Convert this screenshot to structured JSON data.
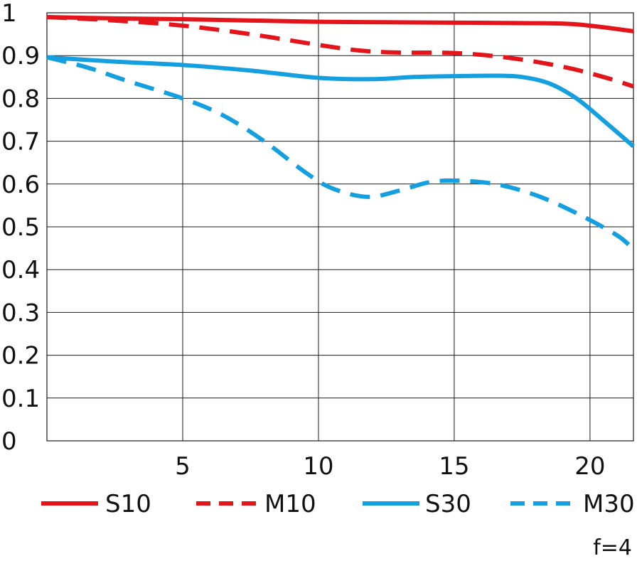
{
  "chart_data": {
    "type": "line",
    "title": "",
    "xlabel": "",
    "ylabel": "",
    "xlim": [
      0,
      21.6
    ],
    "ylim": [
      0,
      1
    ],
    "x_ticks": [
      5,
      10,
      15,
      20
    ],
    "y_ticks": [
      0,
      0.1,
      0.2,
      0.3,
      0.4,
      0.5,
      0.6,
      0.7,
      0.8,
      0.9,
      1
    ],
    "x_tick_labels": [
      "5",
      "10",
      "15",
      "20"
    ],
    "y_tick_labels": [
      "0",
      "0.1",
      "0.2",
      "0.3",
      "0.4",
      "0.5",
      "0.6",
      "0.7",
      "0.8",
      "0.9",
      "1"
    ],
    "grid": true,
    "legend_position": "bottom",
    "annotation": "f=4",
    "series": [
      {
        "name": "S10",
        "color": "#e3151a",
        "style": "solid",
        "points": [
          [
            0,
            0.99
          ],
          [
            2.5,
            0.987
          ],
          [
            5,
            0.985
          ],
          [
            7.5,
            0.982
          ],
          [
            10,
            0.979
          ],
          [
            12.5,
            0.978
          ],
          [
            15,
            0.977
          ],
          [
            17.5,
            0.976
          ],
          [
            19.5,
            0.973
          ],
          [
            21.6,
            0.957
          ]
        ]
      },
      {
        "name": "M10",
        "color": "#e3151a",
        "style": "dashed",
        "points": [
          [
            0,
            0.99
          ],
          [
            2.5,
            0.982
          ],
          [
            5,
            0.97
          ],
          [
            7.5,
            0.95
          ],
          [
            10,
            0.925
          ],
          [
            11.5,
            0.912
          ],
          [
            13,
            0.907
          ],
          [
            15,
            0.906
          ],
          [
            17,
            0.895
          ],
          [
            19,
            0.874
          ],
          [
            20.5,
            0.85
          ],
          [
            21.6,
            0.828
          ]
        ]
      },
      {
        "name": "S30",
        "color": "#14a0e0",
        "style": "solid",
        "points": [
          [
            0,
            0.896
          ],
          [
            2.5,
            0.886
          ],
          [
            5,
            0.878
          ],
          [
            7.5,
            0.865
          ],
          [
            10,
            0.848
          ],
          [
            12,
            0.845
          ],
          [
            13.5,
            0.85
          ],
          [
            15,
            0.852
          ],
          [
            16.5,
            0.853
          ],
          [
            17.5,
            0.85
          ],
          [
            18.5,
            0.835
          ],
          [
            19.5,
            0.8
          ],
          [
            20.5,
            0.748
          ],
          [
            21.6,
            0.688
          ]
        ]
      },
      {
        "name": "M30",
        "color": "#14a0e0",
        "style": "dashed",
        "points": [
          [
            0,
            0.896
          ],
          [
            1.5,
            0.872
          ],
          [
            3,
            0.84
          ],
          [
            5,
            0.8
          ],
          [
            6.5,
            0.76
          ],
          [
            8,
            0.7
          ],
          [
            9.5,
            0.628
          ],
          [
            10.5,
            0.59
          ],
          [
            11.8,
            0.57
          ],
          [
            13,
            0.585
          ],
          [
            14,
            0.603
          ],
          [
            15,
            0.608
          ],
          [
            16.5,
            0.6
          ],
          [
            18,
            0.574
          ],
          [
            19.5,
            0.532
          ],
          [
            21,
            0.48
          ],
          [
            21.6,
            0.447
          ]
        ]
      }
    ]
  }
}
